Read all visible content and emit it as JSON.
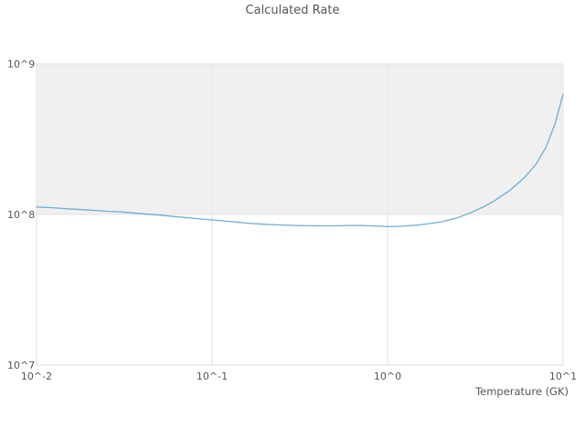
{
  "chart_data": {
    "type": "line",
    "title": "Calculated Rate",
    "xlabel": "Temperature (GK)",
    "ylabel": "",
    "x_scale": "log",
    "y_scale": "log",
    "x_range": [
      0.01,
      10
    ],
    "y_range": [
      10000000.0,
      1000000000.0
    ],
    "grid": true,
    "legend": "none",
    "line_color": "#6baed6",
    "grid_color": "#e2e2e2",
    "band": {
      "from": 100000000.0,
      "to": 1000000000.0,
      "color": "#f0f0f0"
    },
    "x_ticks": [
      {
        "value": 0.01,
        "label": "10^-2"
      },
      {
        "value": 0.1,
        "label": "10^-1"
      },
      {
        "value": 1,
        "label": "10^0"
      },
      {
        "value": 10,
        "label": "10^1"
      }
    ],
    "y_ticks": [
      {
        "value": 10000000.0,
        "label": "10^7"
      },
      {
        "value": 100000000.0,
        "label": "10^8"
      },
      {
        "value": 1000000000.0,
        "label": "10^9"
      }
    ],
    "series": [
      {
        "name": "calculated-rate",
        "x": [
          0.01,
          0.012,
          0.015,
          0.02,
          0.025,
          0.03,
          0.04,
          0.05,
          0.06,
          0.08,
          0.1,
          0.13,
          0.16,
          0.2,
          0.25,
          0.3,
          0.4,
          0.5,
          0.6,
          0.7,
          0.8,
          0.9,
          1.0,
          1.2,
          1.5,
          2.0,
          2.5,
          3.0,
          3.5,
          4.0,
          5.0,
          6.0,
          7.0,
          8.0,
          9.0,
          10.0
        ],
        "y": [
          112000000.0,
          111000000.0,
          109000000.0,
          107000000.0,
          105000000.0,
          104000000.0,
          101000000.0,
          99000000.0,
          97000000.0,
          94000000.0,
          92000000.0,
          89500000.0,
          87500000.0,
          86000000.0,
          85000000.0,
          84500000.0,
          84000000.0,
          84000000.0,
          84500000.0,
          84500000.0,
          84000000.0,
          83500000.0,
          83000000.0,
          83500000.0,
          85000000.0,
          89000000.0,
          95000000.0,
          103000000.0,
          112000000.0,
          122000000.0,
          145000000.0,
          175000000.0,
          215000000.0,
          280000000.0,
          400000000.0,
          630000000.0
        ]
      }
    ]
  }
}
